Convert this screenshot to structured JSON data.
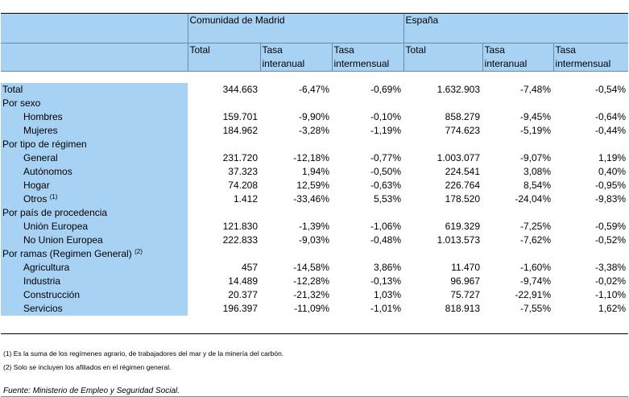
{
  "groups": [
    "Comunidad de Madrid",
    "España"
  ],
  "columns": [
    {
      "line1": "Total",
      "line2": ""
    },
    {
      "line1": "Tasa",
      "line2": "interanual"
    },
    {
      "line1": "Tasa",
      "line2": "intermensual"
    },
    {
      "line1": "Total",
      "line2": ""
    },
    {
      "line1": "Tasa",
      "line2": "interanual"
    },
    {
      "line1": "Tasa",
      "line2": "intermensual"
    }
  ],
  "rows": [
    {
      "label": "Total",
      "indent": false,
      "note": "",
      "values": [
        "344.663",
        "-6,47%",
        "-0,69%",
        "1.632.903",
        "-7,48%",
        "-0,54%"
      ]
    },
    {
      "label": "Por sexo",
      "indent": false,
      "note": "",
      "values": [
        "",
        "",
        "",
        "",
        "",
        ""
      ]
    },
    {
      "label": "Hombres",
      "indent": true,
      "note": "",
      "values": [
        "159.701",
        "-9,90%",
        "-0,10%",
        "858.279",
        "-9,45%",
        "-0,64%"
      ]
    },
    {
      "label": "Mujeres",
      "indent": true,
      "note": "",
      "values": [
        "184.962",
        "-3,28%",
        "-1,19%",
        "774.623",
        "-5,19%",
        "-0,44%"
      ]
    },
    {
      "label": "Por tipo de régimen",
      "indent": false,
      "note": "",
      "values": [
        "",
        "",
        "",
        "",
        "",
        ""
      ]
    },
    {
      "label": "General",
      "indent": true,
      "note": "",
      "values": [
        "231.720",
        "-12,18%",
        "-0,77%",
        "1.003.077",
        "-9,07%",
        "1,19%"
      ]
    },
    {
      "label": "Autónomos",
      "indent": true,
      "note": "",
      "values": [
        "37.323",
        "1,94%",
        "-0,50%",
        "224.541",
        "3,08%",
        "0,40%"
      ]
    },
    {
      "label": "Hogar",
      "indent": true,
      "note": "",
      "values": [
        "74.208",
        "12,59%",
        "-0,63%",
        "226.764",
        "8,54%",
        "-0,95%"
      ]
    },
    {
      "label": "Otros",
      "indent": true,
      "note": "(1)",
      "values": [
        "1.412",
        "-33,46%",
        "5,53%",
        "178.520",
        "-24,04%",
        "-9,83%"
      ]
    },
    {
      "label": "Por país de procedencia",
      "indent": false,
      "note": "",
      "values": [
        "",
        "",
        "",
        "",
        "",
        ""
      ]
    },
    {
      "label": "Unión Europea",
      "indent": true,
      "note": "",
      "values": [
        "121.830",
        "-1,39%",
        "-1,06%",
        "619.329",
        "-7,25%",
        "-0,59%"
      ]
    },
    {
      "label": "No Union Europea",
      "indent": true,
      "note": "",
      "values": [
        "222.833",
        "-9,03%",
        "-0,48%",
        "1.013.573",
        "-7,62%",
        "-0,52%"
      ]
    },
    {
      "label": "Por ramas (Regimen General)",
      "indent": false,
      "note": "(2)",
      "values": [
        "",
        "",
        "",
        "",
        "",
        ""
      ]
    },
    {
      "label": "Agricultura",
      "indent": true,
      "note": "",
      "values": [
        "457",
        "-14,58%",
        "3,86%",
        "11.470",
        "-1,60%",
        "-3,38%"
      ]
    },
    {
      "label": "Industria",
      "indent": true,
      "note": "",
      "values": [
        "14.489",
        "-12,28%",
        "-0,13%",
        "96.967",
        "-9,74%",
        "-0,02%"
      ]
    },
    {
      "label": "Construcción",
      "indent": true,
      "note": "",
      "values": [
        "20.377",
        "-21,32%",
        "1,03%",
        "75.727",
        "-22,91%",
        "-1,10%"
      ]
    },
    {
      "label": "Servicios",
      "indent": true,
      "note": "",
      "values": [
        "196.397",
        "-11,09%",
        "-1,01%",
        "818.913",
        "-7,55%",
        "1,62%"
      ]
    }
  ],
  "footnotes": [
    "(1) Es la suma de los regímenes agrario, de trabajadores del mar y de la minería del carbón.",
    "(2) Solo se incluyen los afiliados en el régimen general."
  ],
  "source": "Fuente: Ministerio de Empleo y Seguridad Social.",
  "colors": {
    "header_bg": "#a8d2f4",
    "label_bg": "#a8d2f4"
  }
}
